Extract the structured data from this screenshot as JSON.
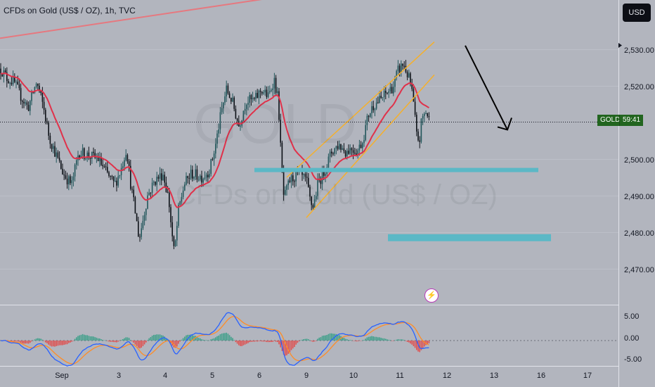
{
  "header": {
    "title": "CFDs on Gold (US$ / OZ), 1h, TVC"
  },
  "currency_button": {
    "label": "USD"
  },
  "watermark": {
    "symbol": "GOLD",
    "description": "CFDs on Gold (US$ / OZ)"
  },
  "price_label": {
    "symbol": "GOLD",
    "countdown": "59:41",
    "value": 2510.5,
    "color": "#22651f"
  },
  "price_axis": {
    "ticks": [
      "2,530.00",
      "2,520.00",
      "2,500.00",
      "2,490.00",
      "2,480.00",
      "2,470.00"
    ]
  },
  "macd_axis": {
    "ticks": [
      "5.00",
      "0.00",
      "-5.00"
    ]
  },
  "time_axis": {
    "ticks": [
      "Sep",
      "3",
      "4",
      "5",
      "6",
      "9",
      "10",
      "11",
      "12",
      "13",
      "16",
      "17"
    ]
  },
  "colors": {
    "background": "#b2b5be",
    "bull_candle": "#22565b",
    "bear_candle": "#0d1117",
    "moving_average": "#e0314a",
    "resistance_line": "#e6787f",
    "channel": "#f5b02b",
    "support_zone": "#5bb8c6",
    "macd_line": "#2962ff",
    "signal_line": "#ff8c26",
    "hist_up": "#3fa08a",
    "hist_down": "#e0504f",
    "arrow": "#000000"
  },
  "icons": {
    "alert": "lightning-icon",
    "projection": "arrow-down-icon"
  },
  "chart_data": {
    "type": "candlestick",
    "symbol": "GOLD",
    "timeframe": "1h",
    "price_range": [
      2465,
      2543
    ],
    "indicator": "MACD",
    "indicator_range": [
      -6.5,
      7.5
    ],
    "x_labels": [
      "Sep",
      "3",
      "4",
      "5",
      "6",
      "9",
      "10",
      "11",
      "12",
      "13",
      "16",
      "17"
    ],
    "current_price": 2510.5,
    "drawings": {
      "resistance_trendline": [
        2533,
        2553
      ],
      "channel_upper": [
        2495,
        2532
      ],
      "channel_lower": [
        2484,
        2523
      ],
      "support_zone_1": 2497,
      "support_zone_2": 2478.5,
      "projection_arrow": [
        2531,
        2508
      ]
    }
  }
}
